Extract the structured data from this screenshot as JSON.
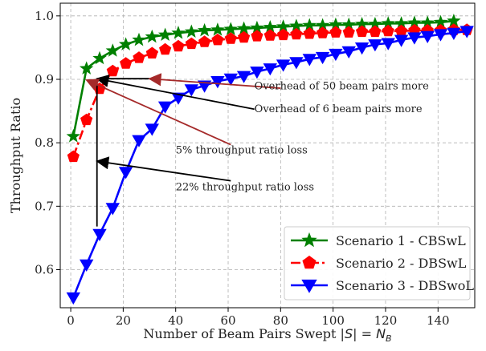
{
  "chart_data": {
    "type": "line",
    "xlabel": "Number of Beam Pairs Swept |",
    "xlabel_math": "S",
    "xlabel_tail": "| = ",
    "xlabel_nb": "N",
    "xlabel_sub": "B",
    "ylabel": "Throughput Ratio",
    "xlim": [
      -4,
      154
    ],
    "ylim": [
      0.54,
      1.02
    ],
    "xticks": [
      0,
      20,
      40,
      60,
      80,
      100,
      120,
      140
    ],
    "yticks": [
      0.6,
      0.7,
      0.8,
      0.9,
      1.0
    ],
    "ytick_labels": [
      "0.6",
      "0.7",
      "0.8",
      "0.9",
      "1.0"
    ],
    "grid": true,
    "legend_position": "bottom-right",
    "series": [
      {
        "name": "Scenario 1 - CBSwL",
        "color": "#008000",
        "marker": "star",
        "style": "solid",
        "x": [
          1,
          6,
          11,
          16,
          21,
          26,
          31,
          36,
          41,
          46,
          51,
          56,
          61,
          66,
          71,
          76,
          81,
          86,
          91,
          96,
          101,
          106,
          111,
          116,
          121,
          126,
          131,
          136,
          141,
          146
        ],
        "y": [
          0.81,
          0.917,
          0.933,
          0.945,
          0.955,
          0.962,
          0.967,
          0.97,
          0.973,
          0.975,
          0.977,
          0.978,
          0.979,
          0.98,
          0.981,
          0.982,
          0.983,
          0.984,
          0.985,
          0.985,
          0.986,
          0.986,
          0.987,
          0.987,
          0.988,
          0.988,
          0.989,
          0.989,
          0.99,
          0.992
        ]
      },
      {
        "name": "Scenario 2 - DBSwL",
        "color": "#ff0000",
        "marker": "pentagon",
        "style": "dashdot",
        "x": [
          1,
          6,
          11,
          16,
          21,
          26,
          31,
          36,
          41,
          46,
          51,
          56,
          61,
          66,
          71,
          76,
          81,
          86,
          91,
          96,
          101,
          106,
          111,
          116,
          121,
          126,
          131,
          136,
          141,
          146,
          151
        ],
        "y": [
          0.778,
          0.836,
          0.885,
          0.913,
          0.925,
          0.934,
          0.941,
          0.947,
          0.952,
          0.956,
          0.959,
          0.962,
          0.964,
          0.966,
          0.968,
          0.969,
          0.97,
          0.971,
          0.972,
          0.973,
          0.974,
          0.974,
          0.975,
          0.975,
          0.976,
          0.976,
          0.977,
          0.977,
          0.977,
          0.978,
          0.978
        ]
      },
      {
        "name": "Scenario 3 - DBSwoL",
        "color": "#0000ff",
        "marker": "triangle-down",
        "style": "solid",
        "x": [
          1,
          6,
          11,
          16,
          21,
          26,
          31,
          36,
          41,
          46,
          51,
          56,
          61,
          66,
          71,
          76,
          81,
          86,
          91,
          96,
          101,
          106,
          111,
          116,
          121,
          126,
          131,
          136,
          141,
          146,
          151
        ],
        "y": [
          0.556,
          0.608,
          0.656,
          0.697,
          0.754,
          0.804,
          0.822,
          0.857,
          0.871,
          0.884,
          0.89,
          0.897,
          0.901,
          0.905,
          0.912,
          0.917,
          0.923,
          0.927,
          0.932,
          0.935,
          0.94,
          0.944,
          0.95,
          0.955,
          0.957,
          0.962,
          0.966,
          0.968,
          0.971,
          0.973,
          0.976
        ]
      }
    ],
    "annotations": [
      {
        "text": "Overhead of 50 beam pairs more",
        "arrow_color": "#a52a2a",
        "tip": [
          30,
          0.901
        ],
        "tail": [
          80,
          0.886
        ],
        "text_at": [
          70,
          0.884
        ]
      },
      {
        "text": "Overhead of 6 beam pairs more",
        "arrow_color": "#000000",
        "tip": [
          10,
          0.901
        ],
        "tail": [
          70,
          0.853
        ],
        "text_at": [
          70,
          0.848
        ]
      },
      {
        "text": "5% throughput ratio loss",
        "arrow_color": "#a52a2a",
        "tip": [
          6,
          0.899
        ],
        "tail": [
          61,
          0.797
        ],
        "text_at": [
          40,
          0.783
        ]
      },
      {
        "text": "22% throughput ratio loss",
        "arrow_color": "#000000",
        "tip": [
          10,
          0.771
        ],
        "tail": [
          61,
          0.74
        ],
        "text_at": [
          40,
          0.725
        ]
      }
    ],
    "bracket_lines": [
      {
        "color": "#000000",
        "from": [
          10,
          0.901
        ],
        "to": [
          10,
          0.668
        ]
      },
      {
        "color": "#000000",
        "from": [
          10,
          0.901
        ],
        "to": [
          30,
          0.901
        ]
      }
    ]
  }
}
